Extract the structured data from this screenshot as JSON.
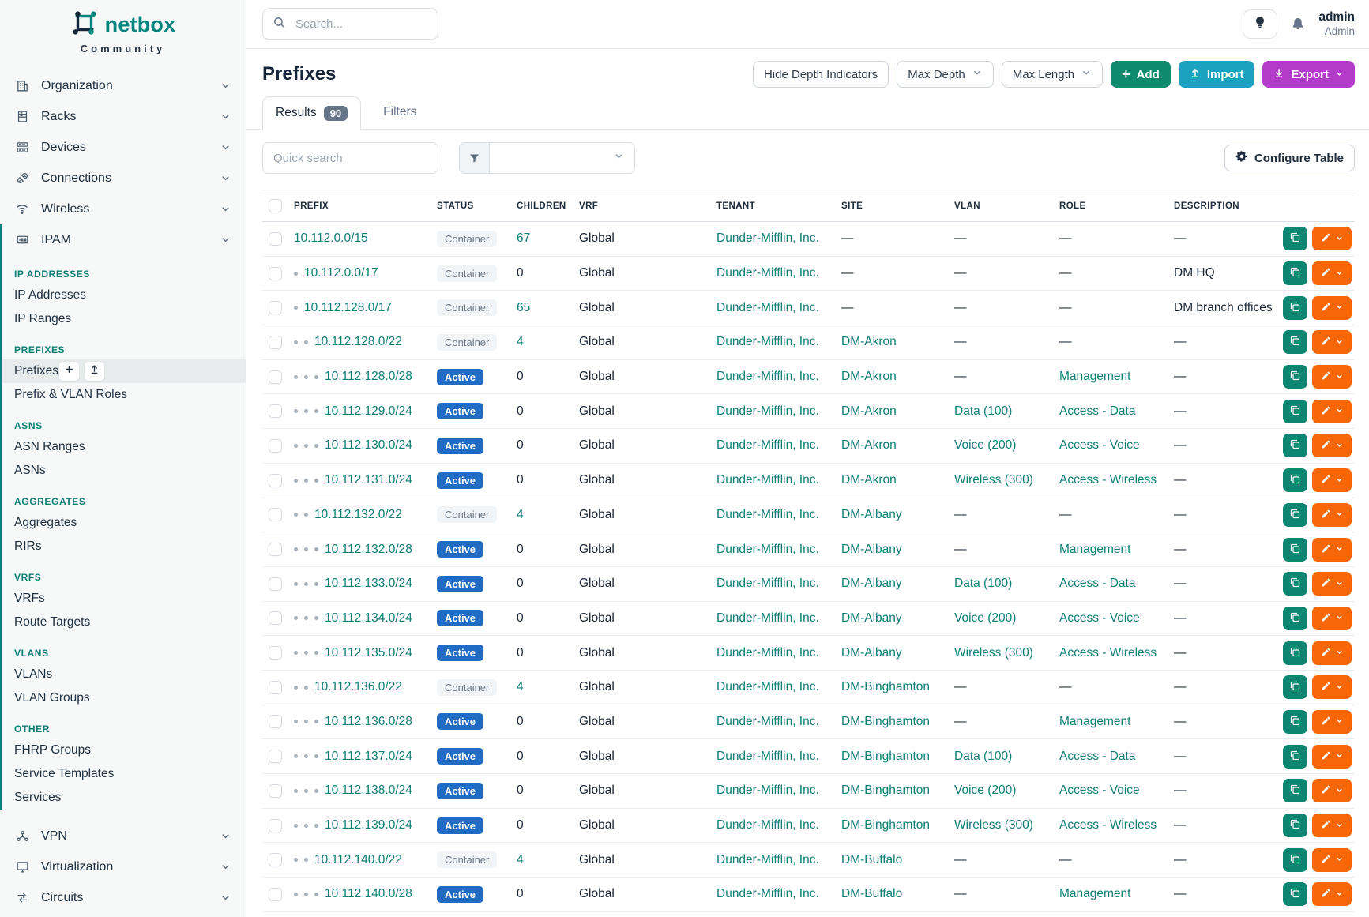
{
  "brand": {
    "name": "netbox",
    "subtitle": "Community"
  },
  "topbar": {
    "search_placeholder": "Search...",
    "user_name": "admin",
    "user_role": "Admin"
  },
  "sidebar": {
    "top_items": [
      {
        "label": "Organization",
        "icon": "building-icon"
      },
      {
        "label": "Racks",
        "icon": "rack-icon"
      },
      {
        "label": "Devices",
        "icon": "server-icon"
      },
      {
        "label": "Connections",
        "icon": "plug-icon"
      },
      {
        "label": "Wireless",
        "icon": "wifi-icon"
      }
    ],
    "ipam": {
      "label": "IPAM",
      "icon": "ipam-icon",
      "sections": [
        {
          "title": "IP ADDRESSES",
          "items": [
            {
              "label": "IP Addresses"
            },
            {
              "label": "IP Ranges"
            }
          ]
        },
        {
          "title": "PREFIXES",
          "items": [
            {
              "label": "Prefixes",
              "selected": true
            },
            {
              "label": "Prefix & VLAN Roles"
            }
          ]
        },
        {
          "title": "ASNS",
          "items": [
            {
              "label": "ASN Ranges"
            },
            {
              "label": "ASNs"
            }
          ]
        },
        {
          "title": "AGGREGATES",
          "items": [
            {
              "label": "Aggregates"
            },
            {
              "label": "RIRs"
            }
          ]
        },
        {
          "title": "VRFS",
          "items": [
            {
              "label": "VRFs"
            },
            {
              "label": "Route Targets"
            }
          ]
        },
        {
          "title": "VLANS",
          "items": [
            {
              "label": "VLANs"
            },
            {
              "label": "VLAN Groups"
            }
          ]
        },
        {
          "title": "OTHER",
          "items": [
            {
              "label": "FHRP Groups"
            },
            {
              "label": "Service Templates"
            },
            {
              "label": "Services"
            }
          ]
        }
      ]
    },
    "bottom_items": [
      {
        "label": "VPN",
        "icon": "vpn-icon"
      },
      {
        "label": "Virtualization",
        "icon": "monitor-icon"
      },
      {
        "label": "Circuits",
        "icon": "circuits-icon"
      }
    ]
  },
  "page": {
    "title": "Prefixes",
    "toolbar": {
      "hide_depth": "Hide Depth Indicators",
      "max_depth": "Max Depth",
      "max_length": "Max Length",
      "add": "Add",
      "import": "Import",
      "export": "Export"
    }
  },
  "tabs": {
    "results": "Results",
    "results_count": "90",
    "filters": "Filters"
  },
  "controls": {
    "quick_search_placeholder": "Quick search",
    "configure_table": "Configure Table"
  },
  "table": {
    "columns": [
      "PREFIX",
      "STATUS",
      "CHILDREN",
      "VRF",
      "TENANT",
      "SITE",
      "VLAN",
      "ROLE",
      "DESCRIPTION"
    ],
    "empty_value": "—",
    "rows": [
      {
        "depth": 0,
        "prefix": "10.112.0.0/15",
        "status": "Container",
        "children": "67",
        "vrf": "Global",
        "tenant": "Dunder-Mifflin, Inc.",
        "site": null,
        "vlan": null,
        "role": null,
        "description": null
      },
      {
        "depth": 1,
        "prefix": "10.112.0.0/17",
        "status": "Container",
        "children": "0",
        "vrf": "Global",
        "tenant": "Dunder-Mifflin, Inc.",
        "site": null,
        "vlan": null,
        "role": null,
        "description": "DM HQ"
      },
      {
        "depth": 1,
        "prefix": "10.112.128.0/17",
        "status": "Container",
        "children": "65",
        "vrf": "Global",
        "tenant": "Dunder-Mifflin, Inc.",
        "site": null,
        "vlan": null,
        "role": null,
        "description": "DM branch offices"
      },
      {
        "depth": 2,
        "prefix": "10.112.128.0/22",
        "status": "Container",
        "children": "4",
        "vrf": "Global",
        "tenant": "Dunder-Mifflin, Inc.",
        "site": "DM-Akron",
        "vlan": null,
        "role": null,
        "description": null
      },
      {
        "depth": 3,
        "prefix": "10.112.128.0/28",
        "status": "Active",
        "children": "0",
        "vrf": "Global",
        "tenant": "Dunder-Mifflin, Inc.",
        "site": "DM-Akron",
        "vlan": null,
        "role": "Management",
        "description": null
      },
      {
        "depth": 3,
        "prefix": "10.112.129.0/24",
        "status": "Active",
        "children": "0",
        "vrf": "Global",
        "tenant": "Dunder-Mifflin, Inc.",
        "site": "DM-Akron",
        "vlan": "Data (100)",
        "role": "Access - Data",
        "description": null
      },
      {
        "depth": 3,
        "prefix": "10.112.130.0/24",
        "status": "Active",
        "children": "0",
        "vrf": "Global",
        "tenant": "Dunder-Mifflin, Inc.",
        "site": "DM-Akron",
        "vlan": "Voice (200)",
        "role": "Access - Voice",
        "description": null
      },
      {
        "depth": 3,
        "prefix": "10.112.131.0/24",
        "status": "Active",
        "children": "0",
        "vrf": "Global",
        "tenant": "Dunder-Mifflin, Inc.",
        "site": "DM-Akron",
        "vlan": "Wireless (300)",
        "role": "Access - Wireless",
        "description": null
      },
      {
        "depth": 2,
        "prefix": "10.112.132.0/22",
        "status": "Container",
        "children": "4",
        "vrf": "Global",
        "tenant": "Dunder-Mifflin, Inc.",
        "site": "DM-Albany",
        "vlan": null,
        "role": null,
        "description": null
      },
      {
        "depth": 3,
        "prefix": "10.112.132.0/28",
        "status": "Active",
        "children": "0",
        "vrf": "Global",
        "tenant": "Dunder-Mifflin, Inc.",
        "site": "DM-Albany",
        "vlan": null,
        "role": "Management",
        "description": null
      },
      {
        "depth": 3,
        "prefix": "10.112.133.0/24",
        "status": "Active",
        "children": "0",
        "vrf": "Global",
        "tenant": "Dunder-Mifflin, Inc.",
        "site": "DM-Albany",
        "vlan": "Data (100)",
        "role": "Access - Data",
        "description": null
      },
      {
        "depth": 3,
        "prefix": "10.112.134.0/24",
        "status": "Active",
        "children": "0",
        "vrf": "Global",
        "tenant": "Dunder-Mifflin, Inc.",
        "site": "DM-Albany",
        "vlan": "Voice (200)",
        "role": "Access - Voice",
        "description": null
      },
      {
        "depth": 3,
        "prefix": "10.112.135.0/24",
        "status": "Active",
        "children": "0",
        "vrf": "Global",
        "tenant": "Dunder-Mifflin, Inc.",
        "site": "DM-Albany",
        "vlan": "Wireless (300)",
        "role": "Access - Wireless",
        "description": null
      },
      {
        "depth": 2,
        "prefix": "10.112.136.0/22",
        "status": "Container",
        "children": "4",
        "vrf": "Global",
        "tenant": "Dunder-Mifflin, Inc.",
        "site": "DM-Binghamton",
        "vlan": null,
        "role": null,
        "description": null
      },
      {
        "depth": 3,
        "prefix": "10.112.136.0/28",
        "status": "Active",
        "children": "0",
        "vrf": "Global",
        "tenant": "Dunder-Mifflin, Inc.",
        "site": "DM-Binghamton",
        "vlan": null,
        "role": "Management",
        "description": null
      },
      {
        "depth": 3,
        "prefix": "10.112.137.0/24",
        "status": "Active",
        "children": "0",
        "vrf": "Global",
        "tenant": "Dunder-Mifflin, Inc.",
        "site": "DM-Binghamton",
        "vlan": "Data (100)",
        "role": "Access - Data",
        "description": null
      },
      {
        "depth": 3,
        "prefix": "10.112.138.0/24",
        "status": "Active",
        "children": "0",
        "vrf": "Global",
        "tenant": "Dunder-Mifflin, Inc.",
        "site": "DM-Binghamton",
        "vlan": "Voice (200)",
        "role": "Access - Voice",
        "description": null
      },
      {
        "depth": 3,
        "prefix": "10.112.139.0/24",
        "status": "Active",
        "children": "0",
        "vrf": "Global",
        "tenant": "Dunder-Mifflin, Inc.",
        "site": "DM-Binghamton",
        "vlan": "Wireless (300)",
        "role": "Access - Wireless",
        "description": null
      },
      {
        "depth": 2,
        "prefix": "10.112.140.0/22",
        "status": "Container",
        "children": "4",
        "vrf": "Global",
        "tenant": "Dunder-Mifflin, Inc.",
        "site": "DM-Buffalo",
        "vlan": null,
        "role": null,
        "description": null
      },
      {
        "depth": 3,
        "prefix": "10.112.140.0/28",
        "status": "Active",
        "children": "0",
        "vrf": "Global",
        "tenant": "Dunder-Mifflin, Inc.",
        "site": "DM-Buffalo",
        "vlan": null,
        "role": "Management",
        "description": null
      }
    ]
  },
  "colors": {
    "accent": "#00857e",
    "link": "#0e7d74",
    "section": "#0b7d72",
    "badge_active": "#206bc4",
    "badge_container_bg": "#f2f5f7",
    "count_badge": "#66758a",
    "btn_add": "#0e8a6d",
    "btn_import": "#1ba2c0",
    "btn_export": "#b23bc9",
    "btn_edit": "#f76707",
    "btn_copy": "#0c8571"
  }
}
